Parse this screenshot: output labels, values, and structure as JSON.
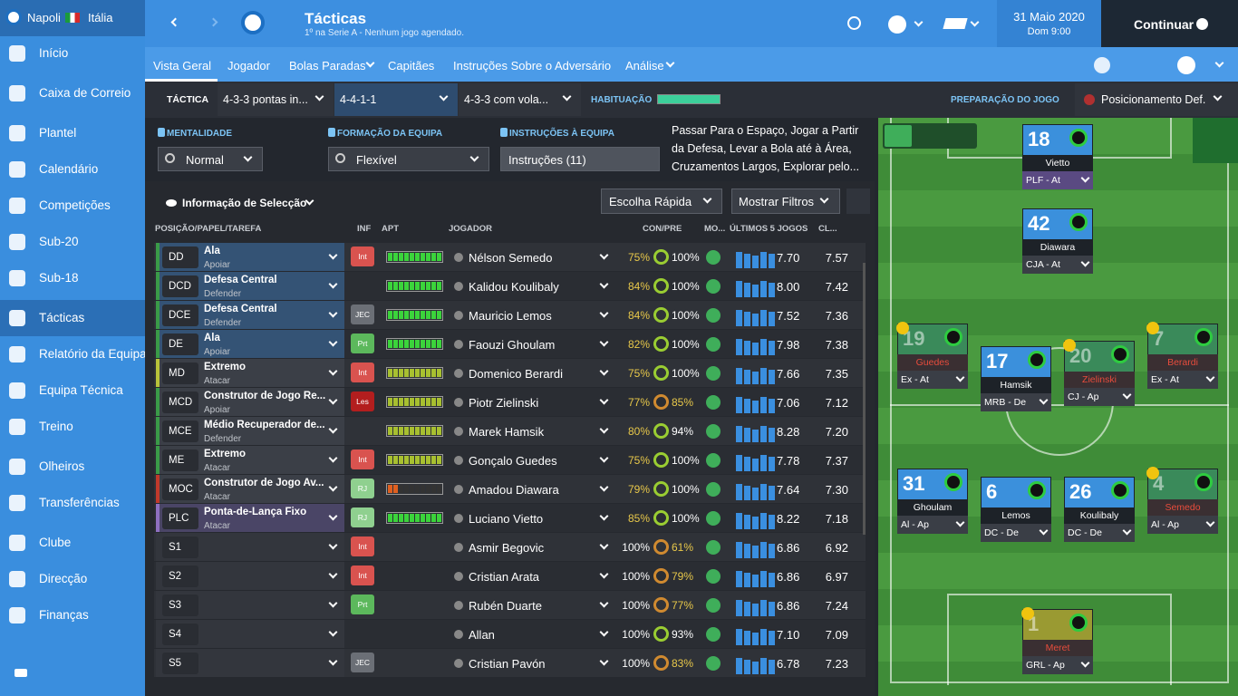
{
  "sidebar": {
    "club": "Napoli",
    "country": "Itália",
    "items": [
      "Início",
      "Caixa de Correio",
      "Plantel",
      "Calendário",
      "Competições",
      "Sub-20",
      "Sub-18",
      "Tácticas",
      "Relatório da Equipa",
      "Equipa Técnica",
      "Treino",
      "Olheiros",
      "Transferências",
      "Clube",
      "Direcção",
      "Finanças"
    ]
  },
  "header": {
    "title": "Tácticas",
    "subtitle": "1º na Serie A - Nenhum jogo agendado.",
    "date": "31 Maio 2020",
    "time": "Dom 9:00",
    "continue": "Continuar"
  },
  "tabs": [
    "Vista Geral",
    "Jogador",
    "Bolas Paradas",
    "Capitães",
    "Instruções Sobre o Adversário",
    "Análise"
  ],
  "tactic_bar": {
    "label": "TÁCTICA",
    "tactics": [
      "4-3-3 pontas in...",
      "4-4-1-1",
      "4-3-3 com vola..."
    ],
    "familiarity": "HABITUAÇÃO",
    "preparation": "PREPARAÇÃO DO JOGO",
    "position": "Posicionamento Def."
  },
  "settings": {
    "mentality_label": "MENTALIDADE",
    "mentality": "Normal",
    "formation_label": "FORMAÇÃO DA EQUIPA",
    "formation": "Flexível",
    "instructions_label": "INSTRUÇÕES À EQUIPA",
    "instructions": "Instruções (11)",
    "instruction_text": [
      "Passar Para o Espaço, Jogar a Partir",
      "da Defesa, Levar a Bola até à Área,",
      "Cruzamentos Largos, Explorar pelo..."
    ]
  },
  "table": {
    "selection": "Informação de Selecção",
    "quick_pick": "Escolha Rápida",
    "filters": "Mostrar Filtros",
    "columns": [
      "POSIÇÃO/PAPEL/TAREFA",
      "INF",
      "APT",
      "JOGADOR",
      "CON/PRE",
      "MO...",
      "ÚLTIMOS 5 JOGOS",
      "CL..."
    ],
    "rows": [
      {
        "pos": "DD",
        "role": "Ala",
        "duty": "Apoiar",
        "inf": "Int",
        "player": "Nélson Semedo",
        "con": "75%",
        "pre": "100%",
        "last": "7.70",
        "cl": "7.57"
      },
      {
        "pos": "DCD",
        "role": "Defesa Central",
        "duty": "Defender",
        "player": "Kalidou Koulibaly",
        "con": "84%",
        "pre": "100%",
        "last": "8.00",
        "cl": "7.42"
      },
      {
        "pos": "DCE",
        "role": "Defesa Central",
        "duty": "Defender",
        "inf": "JEC",
        "player": "Mauricio Lemos",
        "con": "84%",
        "pre": "100%",
        "last": "7.52",
        "cl": "7.36"
      },
      {
        "pos": "DE",
        "role": "Ala",
        "duty": "Apoiar",
        "inf": "Prt",
        "player": "Faouzi Ghoulam",
        "con": "82%",
        "pre": "100%",
        "last": "7.98",
        "cl": "7.38"
      },
      {
        "pos": "MD",
        "role": "Extremo",
        "duty": "Atacar",
        "inf": "Int",
        "player": "Domenico Berardi",
        "con": "75%",
        "pre": "100%",
        "last": "7.66",
        "cl": "7.35"
      },
      {
        "pos": "MCD",
        "role": "Construtor de Jogo Re...",
        "duty": "Apoiar",
        "inf": "Les",
        "player": "Piotr Zielinski",
        "con": "77%",
        "pre": "85%",
        "last": "7.06",
        "cl": "7.12"
      },
      {
        "pos": "MCE",
        "role": "Médio Recuperador de...",
        "duty": "Defender",
        "player": "Marek Hamsik",
        "con": "80%",
        "pre": "94%",
        "last": "8.28",
        "cl": "7.20"
      },
      {
        "pos": "ME",
        "role": "Extremo",
        "duty": "Atacar",
        "inf": "Int",
        "player": "Gonçalo Guedes",
        "con": "75%",
        "pre": "100%",
        "last": "7.78",
        "cl": "7.37"
      },
      {
        "pos": "MOC",
        "role": "Construtor de Jogo Av...",
        "duty": "Atacar",
        "inf": "RJ",
        "player": "Amadou Diawara",
        "con": "79%",
        "pre": "100%",
        "last": "7.64",
        "cl": "7.30"
      },
      {
        "pos": "PLC",
        "role": "Ponta-de-Lança Fixo",
        "duty": "Atacar",
        "inf": "RJ",
        "player": "Luciano Vietto",
        "con": "85%",
        "pre": "100%",
        "last": "8.22",
        "cl": "7.18"
      },
      {
        "pos": "S1",
        "inf": "Int",
        "player": "Asmir Begovic",
        "con": "100%",
        "pre": "61%",
        "last": "6.86",
        "cl": "6.92"
      },
      {
        "pos": "S2",
        "inf": "Int",
        "player": "Cristian Arata",
        "con": "100%",
        "pre": "79%",
        "last": "6.86",
        "cl": "6.97"
      },
      {
        "pos": "S3",
        "inf": "Prt",
        "player": "Rubén Duarte",
        "con": "100%",
        "pre": "77%",
        "last": "6.86",
        "cl": "7.24"
      },
      {
        "pos": "S4",
        "player": "Allan",
        "con": "100%",
        "pre": "93%",
        "last": "7.10",
        "cl": "7.09"
      },
      {
        "pos": "S5",
        "inf": "JEC",
        "player": "Cristian Pavón",
        "con": "100%",
        "pre": "83%",
        "last": "6.78",
        "cl": "7.23"
      }
    ]
  },
  "pitch": [
    {
      "number": "18",
      "name": "Vietto",
      "role": "PLF - At"
    },
    {
      "number": "42",
      "name": "Diawara",
      "role": "CJA - At"
    },
    {
      "number": "19",
      "name": "Guedes",
      "role": "Ex - At"
    },
    {
      "number": "17",
      "name": "Hamsik",
      "role": "MRB - De"
    },
    {
      "number": "20",
      "name": "Zielinski",
      "role": "CJ - Ap"
    },
    {
      "number": "7",
      "name": "Berardi",
      "role": "Ex - At"
    },
    {
      "number": "31",
      "name": "Ghoulam",
      "role": "Al - Ap"
    },
    {
      "number": "6",
      "name": "Lemos",
      "role": "DC - De"
    },
    {
      "number": "26",
      "name": "Koulibaly",
      "role": "DC - De"
    },
    {
      "number": "4",
      "name": "Semedo",
      "role": "Al - Ap"
    },
    {
      "number": "1",
      "name": "Meret",
      "role": "GRL - Ap"
    }
  ]
}
